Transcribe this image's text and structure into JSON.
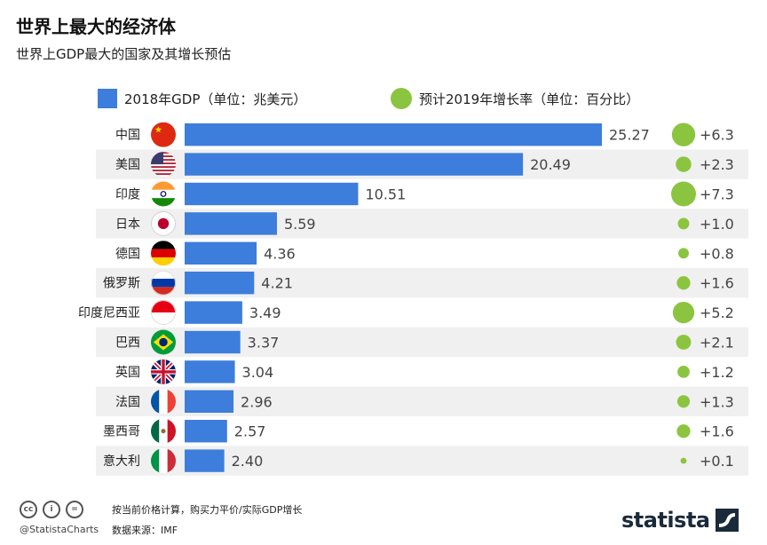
{
  "header": {
    "title": "世界上最大的经济体",
    "subtitle": "世界上GDP最大的国家及其增长预估"
  },
  "legend": {
    "gdp_label": "2018年GDP（单位：兆美元）",
    "growth_label": "预计2019年增长率（单位：百分比）"
  },
  "colors": {
    "bar": "#3d7ddc",
    "dot": "#8bc53f",
    "row_band": "#f0f0f0"
  },
  "chart_data": {
    "type": "bar",
    "orientation": "horizontal",
    "title": "世界上最大的经济体",
    "subtitle": "世界上GDP最大的国家及其增长预估",
    "categories": [
      "中国",
      "美国",
      "印度",
      "日本",
      "德国",
      "俄罗斯",
      "印度尼西亚",
      "巴西",
      "英国",
      "法国",
      "墨西哥",
      "意大利"
    ],
    "series": [
      {
        "name": "2018年GDP（单位：兆美元）",
        "values": [
          25.27,
          20.49,
          10.51,
          5.59,
          4.36,
          4.21,
          3.49,
          3.37,
          3.04,
          2.96,
          2.57,
          2.4
        ],
        "labels": [
          "25.27",
          "20.49",
          "10.51",
          "5.59",
          "4.36",
          "4.21",
          "3.49",
          "3.37",
          "3.04",
          "2.96",
          "2.57",
          "2.40"
        ]
      },
      {
        "name": "预计2019年增长率（单位：百分比）",
        "values": [
          6.3,
          2.3,
          7.3,
          1.0,
          0.8,
          1.6,
          5.2,
          2.1,
          1.2,
          1.3,
          1.6,
          0.1
        ],
        "labels": [
          "+6.3",
          "+2.3",
          "+7.3",
          "+1.0",
          "+0.8",
          "+1.6",
          "+5.2",
          "+2.1",
          "+1.2",
          "+1.3",
          "+1.6",
          "+0.1"
        ]
      }
    ],
    "flags": [
      "cn",
      "us",
      "in",
      "jp",
      "de",
      "ru",
      "id",
      "br",
      "gb",
      "fr",
      "mx",
      "it"
    ],
    "xlim": [
      0,
      25.27
    ],
    "grid": false,
    "legend_position": "top"
  },
  "footer": {
    "handle": "@StatistaCharts",
    "note": "按当前价格计算，购买力平价/实际GDP增长",
    "source": "数据来源：IMF",
    "brand": "statista",
    "icons": [
      "cc-icon",
      "by-icon",
      "nd-icon"
    ],
    "icon_glyphs": [
      "cc",
      "i",
      "="
    ]
  }
}
